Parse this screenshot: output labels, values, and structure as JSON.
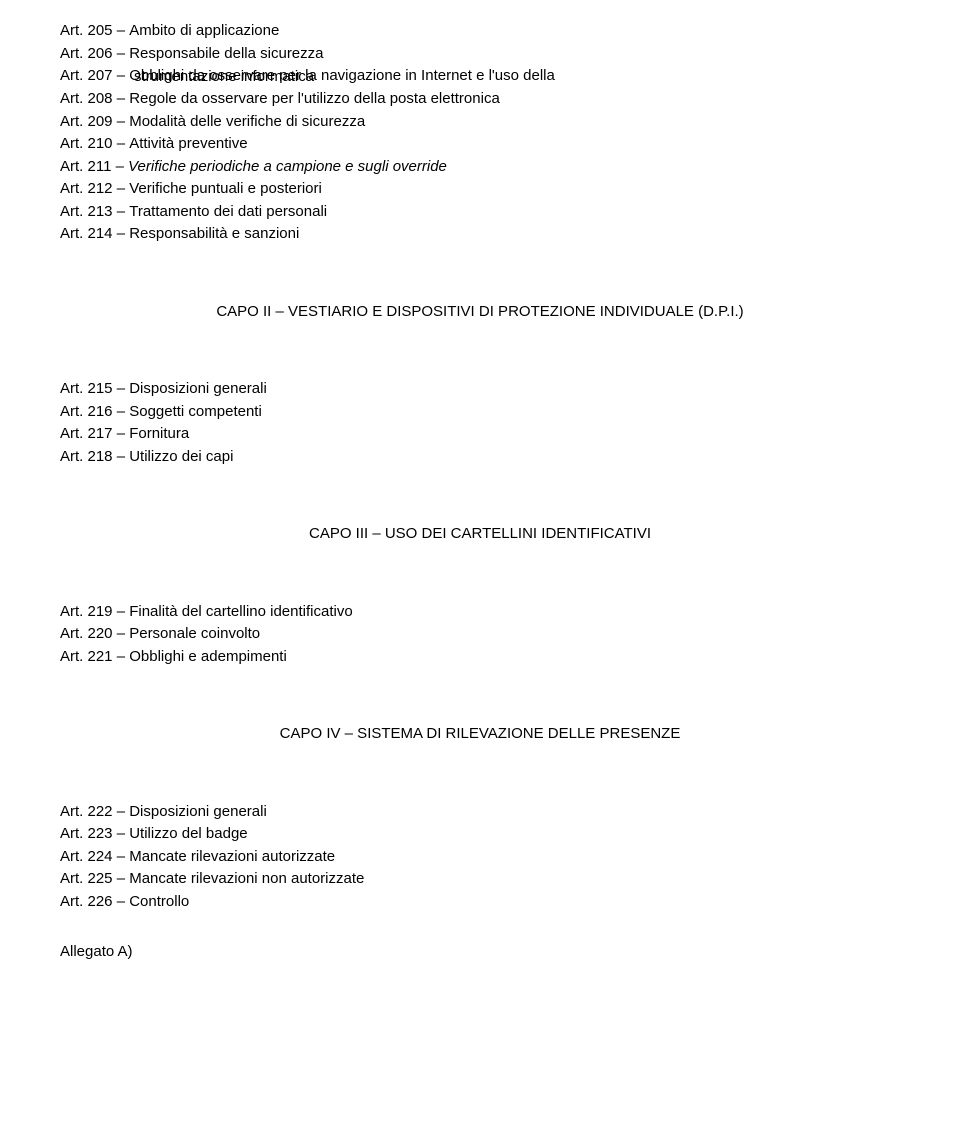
{
  "groups": [
    {
      "articles": [
        {
          "label": "Art. 205",
          "title": "Ambito di applicazione",
          "italic": false
        },
        {
          "label": "Art. 206",
          "title": "Responsabile della sicurezza",
          "italic": false
        },
        {
          "label": "Art. 207",
          "title": "Obblighi da osservare per la navigazione in Internet e l'uso della",
          "italic": false,
          "cont": "strumentazione informatica"
        },
        {
          "label": "Art. 208",
          "title": "Regole da osservare per l'utilizzo della posta elettronica",
          "italic": false
        },
        {
          "label": "Art. 209",
          "title": "Modalità delle verifiche di sicurezza",
          "italic": false
        },
        {
          "label": "Art. 210",
          "title": "Attività preventive",
          "italic": false
        },
        {
          "label": "Art. 211",
          "title": "Verifiche periodiche a campione e sugli override",
          "italic": true
        },
        {
          "label": "Art. 212",
          "title": "Verifiche puntuali e posteriori",
          "italic": false
        },
        {
          "label": "Art. 213",
          "title": "Trattamento dei dati personali",
          "italic": false
        },
        {
          "label": "Art. 214",
          "title": "Responsabilità e sanzioni",
          "italic": false
        }
      ]
    },
    {
      "heading": "CAPO II – VESTIARIO E DISPOSITIVI DI PROTEZIONE INDIVIDUALE (D.P.I.)",
      "articles": [
        {
          "label": "Art. 215",
          "title": "Disposizioni generali",
          "italic": false
        },
        {
          "label": "Art. 216",
          "title": "Soggetti competenti",
          "italic": false
        },
        {
          "label": "Art. 217",
          "title": "Fornitura",
          "italic": false
        },
        {
          "label": "Art. 218",
          "title": "Utilizzo dei capi",
          "italic": false
        }
      ]
    },
    {
      "heading": "CAPO III – USO DEI CARTELLINI IDENTIFICATIVI",
      "articles": [
        {
          "label": "Art. 219",
          "title": "Finalità del cartellino identificativo",
          "italic": false
        },
        {
          "label": "Art. 220",
          "title": "Personale coinvolto",
          "italic": false
        },
        {
          "label": "Art. 221",
          "title": "Obblighi e adempimenti",
          "italic": false
        }
      ]
    },
    {
      "heading": "CAPO IV – SISTEMA DI RILEVAZIONE DELLE PRESENZE",
      "articles": [
        {
          "label": "Art. 222",
          "title": "Disposizioni generali",
          "italic": false
        },
        {
          "label": "Art. 223",
          "title": "Utilizzo del badge",
          "italic": false
        },
        {
          "label": "Art. 224",
          "title": "Mancate rilevazioni autorizzate",
          "italic": false
        },
        {
          "label": "Art. 225",
          "title": "Mancate rilevazioni non autorizzate",
          "italic": false
        },
        {
          "label": "Art. 226",
          "title": "Controllo",
          "italic": false
        }
      ]
    }
  ],
  "allegato": "Allegato A)"
}
